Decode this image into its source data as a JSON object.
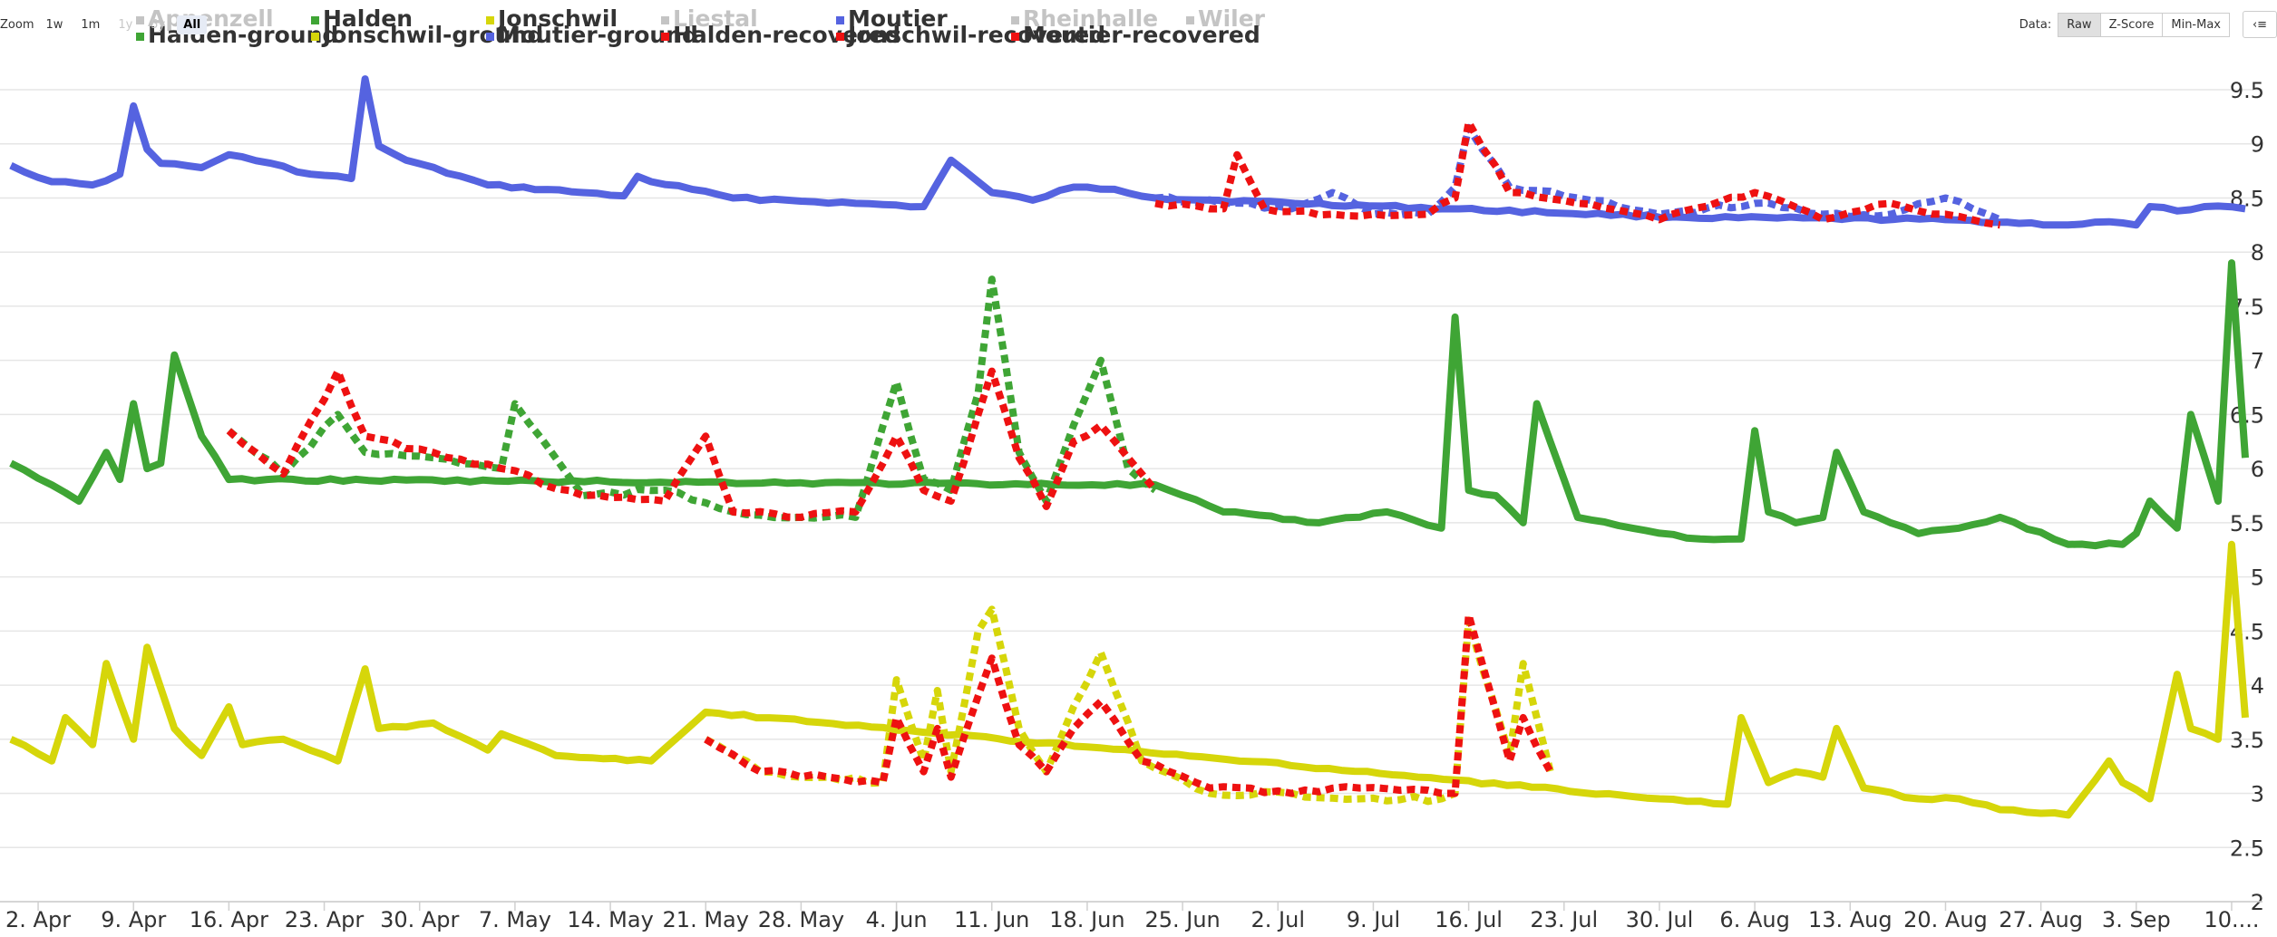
{
  "toolbar": {
    "zoom_label": "Zoom",
    "zoom_buttons": [
      {
        "label": "1w",
        "state": "normal"
      },
      {
        "label": "1m",
        "state": "normal"
      },
      {
        "label": "1y",
        "state": "disabled"
      },
      {
        "label": "5y",
        "state": "disabled"
      },
      {
        "label": "All",
        "state": "active"
      }
    ],
    "data_label": "Data:",
    "data_buttons": [
      {
        "label": "Raw",
        "state": "active"
      },
      {
        "label": "Z-Score",
        "state": "normal"
      },
      {
        "label": "Min-Max",
        "state": "normal"
      }
    ],
    "menu_icon": "menu-icon"
  },
  "chart_data": {
    "type": "line",
    "xlabel": "",
    "ylabel": "",
    "x_axis": {
      "type": "date",
      "range": [
        "2024-03-31",
        "2024-09-11"
      ],
      "tick_dates": [
        "2024-04-02",
        "2024-04-09",
        "2024-04-16",
        "2024-04-23",
        "2024-04-30",
        "2024-05-07",
        "2024-05-14",
        "2024-05-21",
        "2024-05-28",
        "2024-06-04",
        "2024-06-11",
        "2024-06-18",
        "2024-06-25",
        "2024-07-02",
        "2024-07-09",
        "2024-07-16",
        "2024-07-23",
        "2024-07-30",
        "2024-08-06",
        "2024-08-13",
        "2024-08-20",
        "2024-08-27",
        "2024-09-03",
        "2024-09-10"
      ],
      "tick_labels": [
        "2. Apr",
        "9. Apr",
        "16. Apr",
        "23. Apr",
        "30. Apr",
        "7. May",
        "14. May",
        "21. May",
        "28. May",
        "4. Jun",
        "11. Jun",
        "18. Jun",
        "25. Jun",
        "2. Jul",
        "9. Jul",
        "16. Jul",
        "23. Jul",
        "30. Jul",
        "6. Aug",
        "13. Aug",
        "20. Aug",
        "27. Aug",
        "3. Sep",
        "10...."
      ]
    },
    "y_axis": {
      "position": "right",
      "ylim": [
        2,
        9.5
      ],
      "ticks": [
        2,
        2.5,
        3,
        3.5,
        4,
        4.5,
        5,
        5.5,
        6,
        6.5,
        7,
        7.5,
        8,
        8.5,
        9,
        9.5
      ],
      "tick_labels": [
        "2",
        "2.5",
        "3",
        "3.5",
        "4",
        "4.5",
        "5",
        "5.5",
        "6",
        "6.5",
        "7",
        "7.5",
        "8",
        "8.5",
        "9",
        "9.5"
      ]
    },
    "grid": true,
    "legend_position": "top",
    "legend": [
      {
        "name": "Appenzell",
        "color": "#c4c4c4",
        "visible": false
      },
      {
        "name": "Halden",
        "color": "#3fa535",
        "visible": true
      },
      {
        "name": "Jonschwil",
        "color": "#d6d60a",
        "visible": true
      },
      {
        "name": "Liestal",
        "color": "#c4c4c4",
        "visible": false
      },
      {
        "name": "Moutier",
        "color": "#5563e0",
        "visible": true
      },
      {
        "name": "Rheinhalle",
        "color": "#c4c4c4",
        "visible": false
      },
      {
        "name": "Wiler",
        "color": "#c4c4c4",
        "visible": false
      },
      {
        "name": "Halden-ground",
        "color": "#3fa535",
        "visible": true
      },
      {
        "name": "Jonschwil-ground",
        "color": "#d6d60a",
        "visible": true
      },
      {
        "name": "Moutier-ground",
        "color": "#5563e0",
        "visible": true
      },
      {
        "name": "Halden-recovered",
        "color": "#ee1111",
        "visible": true
      },
      {
        "name": "Jonschwil-recovered",
        "color": "#ee1111",
        "visible": true
      },
      {
        "name": "Moutier-recovered",
        "color": "#ee1111",
        "visible": true
      }
    ],
    "series": [
      {
        "name": "Moutier",
        "color": "#5563e0",
        "style": "solid",
        "x": [
          "2024-03-31",
          "2024-04-03",
          "2024-04-06",
          "2024-04-08",
          "2024-04-09",
          "2024-04-10",
          "2024-04-11",
          "2024-04-14",
          "2024-04-16",
          "2024-04-17",
          "2024-04-22",
          "2024-04-25",
          "2024-04-26",
          "2024-04-27",
          "2024-04-29",
          "2024-05-05",
          "2024-05-12",
          "2024-05-15",
          "2024-05-16",
          "2024-05-17",
          "2024-05-20",
          "2024-05-23",
          "2024-05-27",
          "2024-06-01",
          "2024-06-06",
          "2024-06-08",
          "2024-06-10",
          "2024-06-11",
          "2024-06-14",
          "2024-06-17",
          "2024-06-20",
          "2024-06-23",
          "2024-08-01",
          "2024-08-20",
          "2024-08-29",
          "2024-09-01",
          "2024-09-03",
          "2024-09-04",
          "2024-09-06",
          "2024-09-08",
          "2024-09-11"
        ],
        "values": [
          8.8,
          8.65,
          8.62,
          8.72,
          9.35,
          8.95,
          8.82,
          8.78,
          8.9,
          8.88,
          8.72,
          8.68,
          9.6,
          8.98,
          8.85,
          8.62,
          8.55,
          8.52,
          8.7,
          8.65,
          8.58,
          8.5,
          8.48,
          8.45,
          8.42,
          8.85,
          8.65,
          8.55,
          8.48,
          8.6,
          8.58,
          8.5,
          8.32,
          8.3,
          8.25,
          8.28,
          8.25,
          8.42,
          8.38,
          8.42,
          8.4
        ]
      },
      {
        "name": "Moutier-ground",
        "color": "#5563e0",
        "style": "dotted",
        "x": [
          "2024-06-23",
          "2024-06-28",
          "2024-07-03",
          "2024-07-06",
          "2024-07-09",
          "2024-07-13",
          "2024-07-15",
          "2024-07-16",
          "2024-07-19",
          "2024-07-24",
          "2024-07-30",
          "2024-08-06",
          "2024-08-11",
          "2024-08-16",
          "2024-08-20",
          "2024-08-24"
        ],
        "values": [
          8.5,
          8.45,
          8.4,
          8.55,
          8.35,
          8.35,
          8.6,
          9.15,
          8.6,
          8.5,
          8.35,
          8.45,
          8.35,
          8.35,
          8.5,
          8.3
        ]
      },
      {
        "name": "Halden",
        "color": "#3fa535",
        "style": "solid",
        "x": [
          "2024-03-31",
          "2024-04-03",
          "2024-04-05",
          "2024-04-07",
          "2024-04-08",
          "2024-04-09",
          "2024-04-10",
          "2024-04-11",
          "2024-04-12",
          "2024-04-14",
          "2024-04-16",
          "2024-06-23",
          "2024-06-28",
          "2024-07-05",
          "2024-07-10",
          "2024-07-14",
          "2024-07-15",
          "2024-07-16",
          "2024-07-18",
          "2024-07-20",
          "2024-07-21",
          "2024-07-24",
          "2024-07-28",
          "2024-08-02",
          "2024-08-05",
          "2024-08-06",
          "2024-08-07",
          "2024-08-09",
          "2024-08-11",
          "2024-08-12",
          "2024-08-14",
          "2024-08-18",
          "2024-08-21",
          "2024-08-24",
          "2024-08-29",
          "2024-09-02",
          "2024-09-03",
          "2024-09-04",
          "2024-09-06",
          "2024-09-07",
          "2024-09-09",
          "2024-09-10",
          "2024-09-11"
        ],
        "values": [
          6.05,
          5.85,
          5.7,
          6.15,
          5.9,
          6.6,
          6.0,
          6.05,
          7.05,
          6.3,
          5.9,
          5.85,
          5.6,
          5.5,
          5.6,
          5.45,
          7.4,
          5.8,
          5.75,
          5.5,
          6.6,
          5.55,
          5.45,
          5.35,
          5.35,
          6.35,
          5.6,
          5.5,
          5.55,
          6.15,
          5.6,
          5.4,
          5.45,
          5.55,
          5.3,
          5.3,
          5.4,
          5.7,
          5.45,
          6.5,
          5.7,
          7.9,
          6.1
        ]
      },
      {
        "name": "Halden-ground",
        "color": "#3fa535",
        "style": "dotted",
        "x": [
          "2024-04-16",
          "2024-04-20",
          "2024-04-24",
          "2024-04-26",
          "2024-05-01",
          "2024-05-06",
          "2024-05-07",
          "2024-05-12",
          "2024-05-18",
          "2024-05-23",
          "2024-05-28",
          "2024-06-01",
          "2024-06-04",
          "2024-06-06",
          "2024-06-08",
          "2024-06-10",
          "2024-06-11",
          "2024-06-13",
          "2024-06-15",
          "2024-06-17",
          "2024-06-19",
          "2024-06-21",
          "2024-06-23"
        ],
        "values": [
          6.35,
          5.95,
          6.5,
          6.15,
          6.1,
          6.0,
          6.6,
          5.75,
          5.8,
          5.6,
          5.55,
          5.55,
          6.8,
          5.9,
          5.8,
          6.7,
          7.75,
          6.15,
          5.7,
          6.4,
          7.0,
          6.0,
          5.8
        ]
      },
      {
        "name": "Halden-recovered",
        "color": "#ee1111",
        "style": "dotted",
        "x": [
          "2024-04-16",
          "2024-04-20",
          "2024-04-24",
          "2024-04-26",
          "2024-05-01",
          "2024-05-06",
          "2024-05-12",
          "2024-05-18",
          "2024-05-21",
          "2024-05-23",
          "2024-05-28",
          "2024-06-01",
          "2024-06-04",
          "2024-06-06",
          "2024-06-08",
          "2024-06-10",
          "2024-06-11",
          "2024-06-13",
          "2024-06-15",
          "2024-06-17",
          "2024-06-19",
          "2024-06-21",
          "2024-06-23"
        ],
        "values": [
          6.35,
          5.95,
          6.9,
          6.3,
          6.15,
          6.0,
          5.75,
          5.7,
          6.3,
          5.6,
          5.55,
          5.6,
          6.3,
          5.8,
          5.7,
          6.5,
          6.9,
          6.1,
          5.65,
          6.25,
          6.4,
          6.1,
          5.8
        ]
      },
      {
        "name": "Jonschwil",
        "color": "#d6d60a",
        "style": "solid",
        "x": [
          "2024-03-31",
          "2024-04-03",
          "2024-04-04",
          "2024-04-06",
          "2024-04-07",
          "2024-04-09",
          "2024-04-10",
          "2024-04-12",
          "2024-04-14",
          "2024-04-16",
          "2024-04-17",
          "2024-04-20",
          "2024-04-24",
          "2024-04-26",
          "2024-04-27",
          "2024-05-01",
          "2024-05-05",
          "2024-05-06",
          "2024-05-10",
          "2024-05-17",
          "2024-05-21",
          "2024-07-30",
          "2024-08-04",
          "2024-08-05",
          "2024-08-07",
          "2024-08-09",
          "2024-08-11",
          "2024-08-12",
          "2024-08-14",
          "2024-08-18",
          "2024-08-21",
          "2024-08-24",
          "2024-08-29",
          "2024-09-01",
          "2024-09-02",
          "2024-09-04",
          "2024-09-06",
          "2024-09-07",
          "2024-09-09",
          "2024-09-10",
          "2024-09-11"
        ],
        "values": [
          3.5,
          3.3,
          3.7,
          3.45,
          4.2,
          3.5,
          4.35,
          3.6,
          3.35,
          3.8,
          3.45,
          3.5,
          3.3,
          4.15,
          3.6,
          3.65,
          3.4,
          3.55,
          3.35,
          3.3,
          3.75,
          2.95,
          2.9,
          3.7,
          3.1,
          3.2,
          3.15,
          3.6,
          3.05,
          2.95,
          2.95,
          2.85,
          2.8,
          3.3,
          3.1,
          2.95,
          4.1,
          3.6,
          3.5,
          5.3,
          3.7
        ]
      },
      {
        "name": "Jonschwil-ground",
        "color": "#d6d60a",
        "style": "dotted",
        "x": [
          "2024-05-21",
          "2024-05-25",
          "2024-05-30",
          "2024-06-03",
          "2024-06-04",
          "2024-06-06",
          "2024-06-07",
          "2024-06-08",
          "2024-06-10",
          "2024-06-11",
          "2024-06-13",
          "2024-06-15",
          "2024-06-17",
          "2024-06-19",
          "2024-06-22",
          "2024-06-27",
          "2024-07-03",
          "2024-07-08",
          "2024-07-14",
          "2024-07-15",
          "2024-07-16",
          "2024-07-19",
          "2024-07-20",
          "2024-07-22"
        ],
        "values": [
          3.5,
          3.2,
          3.15,
          3.1,
          4.05,
          3.3,
          3.95,
          3.2,
          4.5,
          4.7,
          3.6,
          3.2,
          3.8,
          4.3,
          3.3,
          3.0,
          3.0,
          2.95,
          2.95,
          3.0,
          4.6,
          3.35,
          4.2,
          3.2
        ]
      },
      {
        "name": "Jonschwil-recovered",
        "color": "#ee1111",
        "style": "dotted",
        "x": [
          "2024-05-21",
          "2024-05-25",
          "2024-05-30",
          "2024-06-03",
          "2024-06-04",
          "2024-06-06",
          "2024-06-07",
          "2024-06-08",
          "2024-06-10",
          "2024-06-11",
          "2024-06-13",
          "2024-06-15",
          "2024-06-17",
          "2024-06-19",
          "2024-06-22",
          "2024-06-27",
          "2024-07-03",
          "2024-07-08",
          "2024-07-14",
          "2024-07-15",
          "2024-07-16",
          "2024-07-19",
          "2024-07-20",
          "2024-07-22"
        ],
        "values": [
          3.5,
          3.2,
          3.15,
          3.1,
          3.7,
          3.2,
          3.6,
          3.15,
          3.9,
          4.25,
          3.45,
          3.2,
          3.6,
          3.85,
          3.3,
          3.05,
          3.0,
          3.05,
          3.0,
          3.0,
          4.65,
          3.3,
          3.7,
          3.2
        ]
      },
      {
        "name": "Moutier-recovered",
        "color": "#ee1111",
        "style": "dotted",
        "x": [
          "2024-06-23",
          "2024-06-28",
          "2024-06-29",
          "2024-07-01",
          "2024-07-06",
          "2024-07-09",
          "2024-07-13",
          "2024-07-15",
          "2024-07-16",
          "2024-07-19",
          "2024-07-24",
          "2024-07-30",
          "2024-08-06",
          "2024-08-11",
          "2024-08-16",
          "2024-08-20",
          "2024-08-24"
        ],
        "values": [
          8.45,
          8.4,
          8.9,
          8.4,
          8.35,
          8.35,
          8.35,
          8.5,
          9.2,
          8.55,
          8.45,
          8.3,
          8.55,
          8.3,
          8.45,
          8.35,
          8.25
        ]
      }
    ]
  }
}
